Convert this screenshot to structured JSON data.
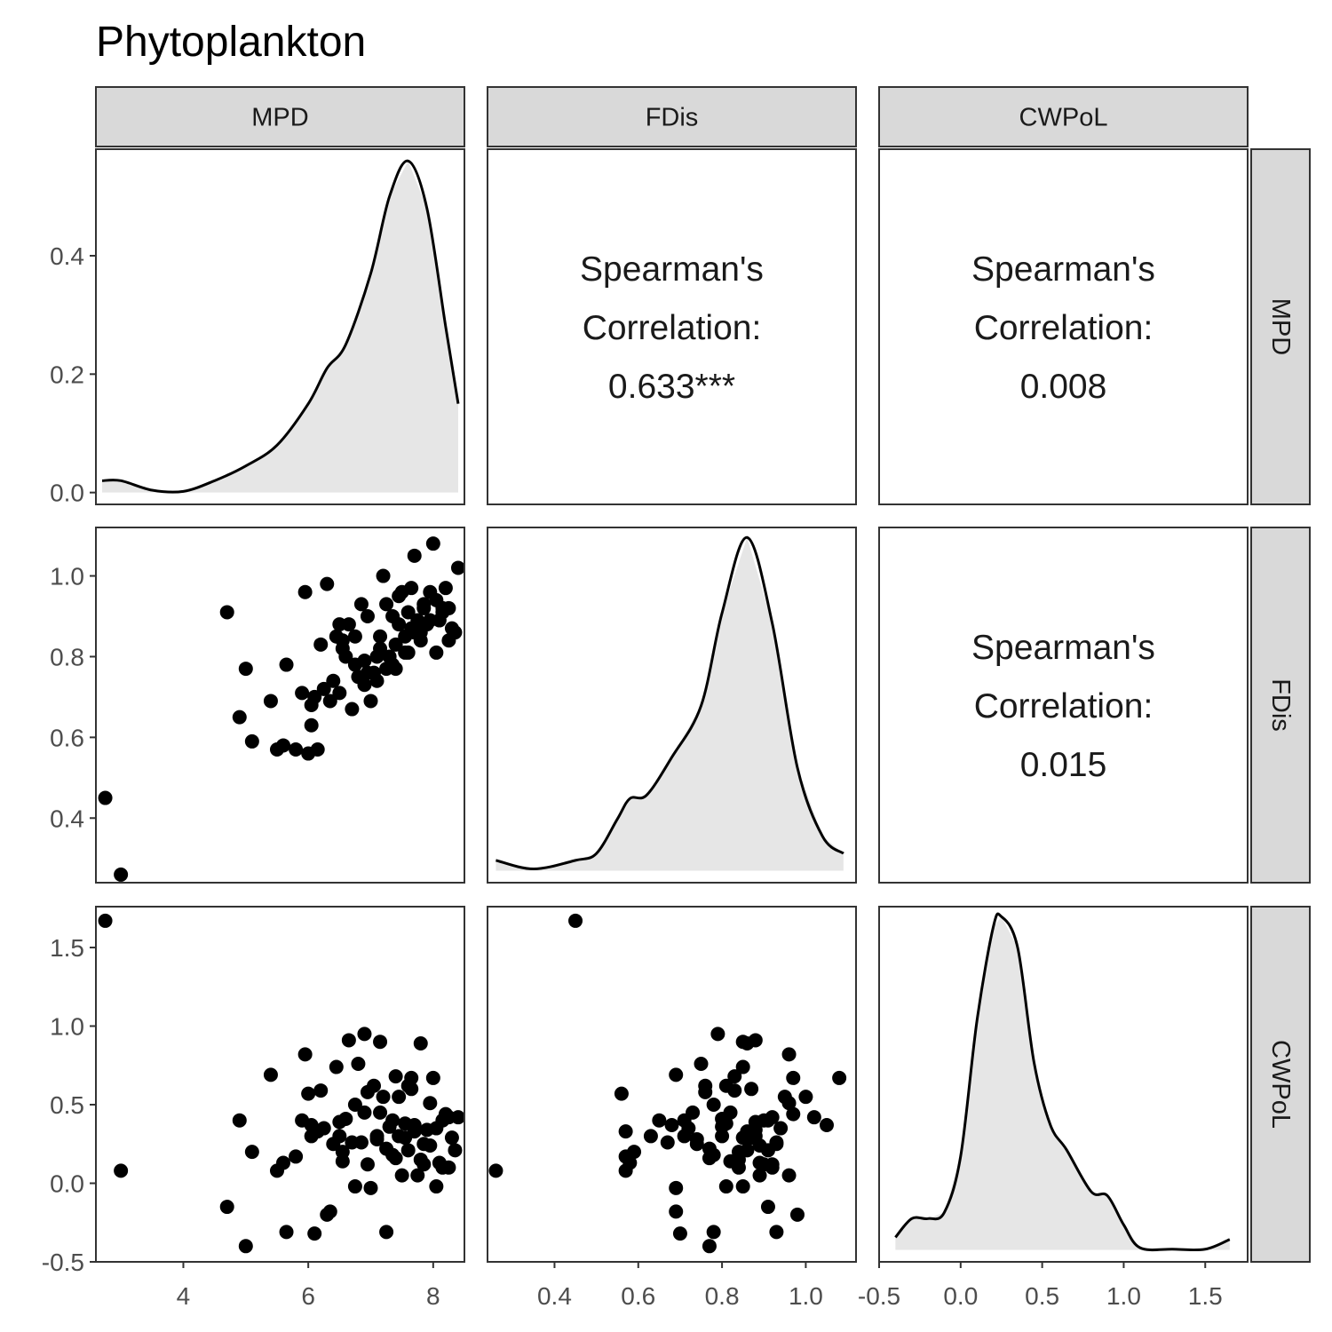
{
  "title": "Phytoplankton",
  "variables": [
    "MPD",
    "FDis",
    "CWPoL"
  ],
  "correlations": [
    {
      "row": 0,
      "col": 1,
      "lines": [
        "Spearman's",
        "Correlation:",
        "0.633***"
      ],
      "value": 0.633,
      "significance": "***"
    },
    {
      "row": 0,
      "col": 2,
      "lines": [
        "Spearman's",
        "Correlation:",
        "0.008"
      ],
      "value": 0.008,
      "significance": ""
    },
    {
      "row": 1,
      "col": 2,
      "lines": [
        "Spearman's",
        "Correlation:",
        "0.015"
      ],
      "value": 0.015,
      "significance": ""
    }
  ],
  "colors": {
    "strip_fill": "#d9d9d9",
    "border": "#333333",
    "density_fill": "#e6e6e6",
    "point": "#000000",
    "tick_text": "#4d4d4d"
  },
  "chart_data": {
    "type": "scatter",
    "subtype": "pairs-plot (scatterplot matrix)",
    "title": "Phytoplankton",
    "grid": false,
    "axes": {
      "MPD": {
        "range": [
          2.6,
          8.5
        ],
        "ticks": [
          4,
          6,
          8
        ],
        "tick_labels": [
          "4",
          "6",
          "8"
        ]
      },
      "FDis": {
        "range": [
          0.24,
          1.12
        ],
        "ticks": [
          0.4,
          0.6,
          0.8,
          1.0
        ],
        "tick_labels": [
          "0.4",
          "0.6",
          "0.8",
          "1.0"
        ]
      },
      "CWPoL": {
        "range": [
          -0.5,
          1.76
        ],
        "ticks": [
          -0.5,
          0.0,
          0.5,
          1.0,
          1.5
        ],
        "tick_labels": [
          "-0.5",
          "0.0",
          "0.5",
          "1.0",
          "1.5"
        ]
      }
    },
    "density_axis": {
      "range": [
        -0.02,
        0.58
      ],
      "ticks": [
        0.0,
        0.2,
        0.4
      ],
      "tick_labels": [
        "0.0",
        "0.2",
        "0.4"
      ]
    },
    "densities": {
      "MPD": {
        "x": [
          2.7,
          3.0,
          3.5,
          4.0,
          4.5,
          5.0,
          5.5,
          6.0,
          6.3,
          6.6,
          7.0,
          7.3,
          7.6,
          7.9,
          8.2,
          8.4
        ],
        "y": [
          0.02,
          0.02,
          0.004,
          0.002,
          0.02,
          0.045,
          0.08,
          0.15,
          0.21,
          0.25,
          0.37,
          0.5,
          0.56,
          0.48,
          0.28,
          0.15
        ]
      },
      "FDis": {
        "x": [
          0.26,
          0.35,
          0.45,
          0.5,
          0.55,
          0.58,
          0.62,
          0.68,
          0.75,
          0.8,
          0.86,
          0.92,
          0.98,
          1.04,
          1.09
        ],
        "y": [
          0.03,
          0.005,
          0.03,
          0.05,
          0.15,
          0.21,
          0.22,
          0.33,
          0.48,
          0.75,
          0.97,
          0.72,
          0.3,
          0.1,
          0.05
        ]
      },
      "CWPoL": {
        "x": [
          -0.4,
          -0.3,
          -0.2,
          -0.1,
          0.0,
          0.1,
          0.2,
          0.25,
          0.35,
          0.45,
          0.55,
          0.65,
          0.8,
          0.9,
          1.0,
          1.1,
          1.3,
          1.5,
          1.65
        ],
        "y": [
          0.06,
          0.15,
          0.15,
          0.18,
          0.45,
          1.1,
          1.55,
          1.6,
          1.45,
          0.9,
          0.6,
          0.48,
          0.28,
          0.26,
          0.12,
          0.01,
          0.003,
          0.003,
          0.05
        ]
      }
    },
    "points": {
      "MPD": [
        2.75,
        3.0,
        4.7,
        5.0,
        4.9,
        5.1,
        5.4,
        5.5,
        5.6,
        5.65,
        5.8,
        5.9,
        5.95,
        6.0,
        6.05,
        6.1,
        6.15,
        6.2,
        6.3,
        6.35,
        6.4,
        6.45,
        6.5,
        6.55,
        6.6,
        6.65,
        6.7,
        6.75,
        6.8,
        6.85,
        6.9,
        6.95,
        7.0,
        7.05,
        7.1,
        7.15,
        7.2,
        7.25,
        7.3,
        7.35,
        7.4,
        7.45,
        7.5,
        7.55,
        7.6,
        7.65,
        7.7,
        7.75,
        7.8,
        7.85,
        7.9,
        7.95,
        8.0,
        8.05,
        8.1,
        8.15,
        8.2,
        8.25,
        8.3,
        8.35,
        8.4,
        6.25,
        6.55,
        6.95,
        7.15,
        7.35,
        7.45,
        7.65,
        7.85,
        8.05,
        8.25,
        6.75,
        7.25,
        7.55,
        7.8,
        6.05,
        6.5,
        6.9,
        7.1,
        7.4,
        7.6,
        7.7,
        7.95,
        8.15
      ],
      "FDis": [
        0.45,
        0.26,
        0.91,
        0.77,
        0.65,
        0.59,
        0.69,
        0.57,
        0.58,
        0.78,
        0.57,
        0.71,
        0.96,
        0.56,
        0.68,
        0.7,
        0.57,
        0.83,
        0.98,
        0.69,
        0.74,
        0.85,
        0.88,
        0.82,
        0.8,
        0.88,
        0.67,
        0.85,
        0.75,
        0.93,
        0.79,
        0.9,
        0.69,
        0.76,
        0.8,
        0.85,
        1.0,
        0.93,
        0.8,
        0.9,
        0.83,
        0.95,
        0.96,
        0.85,
        0.91,
        0.97,
        1.05,
        0.89,
        0.86,
        0.92,
        0.88,
        0.96,
        1.08,
        0.94,
        0.89,
        0.91,
        0.97,
        0.92,
        0.87,
        0.86,
        1.02,
        0.72,
        0.84,
        0.76,
        0.82,
        0.78,
        0.88,
        0.87,
        0.93,
        0.81,
        0.84,
        0.78,
        0.77,
        0.81,
        0.84,
        0.63,
        0.71,
        0.73,
        0.74,
        0.77,
        0.81,
        0.86,
        0.89,
        0.92
      ],
      "CWPoL": [
        1.67,
        0.08,
        -0.15,
        -0.4,
        0.4,
        0.2,
        0.69,
        0.08,
        0.13,
        -0.31,
        0.17,
        0.4,
        0.82,
        0.57,
        0.37,
        -0.32,
        0.33,
        0.59,
        -0.2,
        -0.18,
        0.25,
        0.74,
        0.39,
        0.14,
        0.41,
        0.91,
        0.26,
        -0.02,
        0.76,
        0.26,
        0.95,
        0.12,
        -0.03,
        0.62,
        0.3,
        0.9,
        0.55,
        -0.31,
        0.36,
        0.4,
        0.68,
        0.55,
        0.05,
        0.29,
        0.21,
        0.67,
        0.37,
        0.05,
        0.89,
        0.12,
        0.34,
        0.51,
        0.67,
        0.35,
        0.13,
        0.4,
        0.44,
        0.42,
        0.29,
        0.21,
        0.42,
        0.35,
        0.2,
        0.58,
        0.45,
        0.18,
        0.3,
        0.6,
        0.25,
        -0.02,
        0.1,
        0.5,
        0.22,
        0.38,
        0.15,
        0.3,
        0.3,
        0.45,
        0.28,
        0.16,
        0.62,
        0.33,
        0.24,
        0.1
      ]
    }
  }
}
